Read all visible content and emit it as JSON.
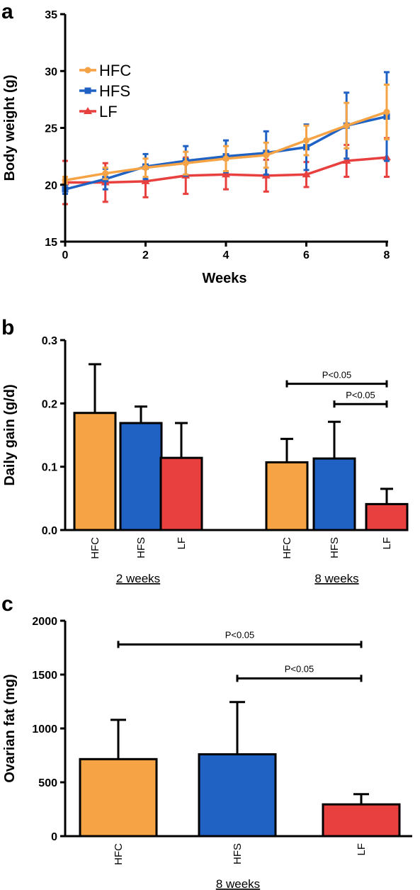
{
  "colors": {
    "HFC": "#F5A345",
    "HFS": "#1F62C4",
    "LF": "#E8403E",
    "axis": "#000000"
  },
  "chart_data": [
    {
      "panel": "a",
      "type": "line",
      "xlabel": "Weeks",
      "ylabel": "Body weight (g)",
      "xlim": [
        0,
        8
      ],
      "ylim": [
        15,
        35
      ],
      "xticks": [
        "0",
        "2",
        "4",
        "6",
        "8"
      ],
      "yticks": [
        "15",
        "20",
        "25",
        "30",
        "35"
      ],
      "grid": false,
      "legend_position": "top-left",
      "x": [
        0,
        1,
        2,
        3,
        4,
        5,
        6,
        7,
        8
      ],
      "series": [
        {
          "name": "HFC",
          "marker": "circle",
          "values": [
            20.4,
            21.0,
            21.5,
            21.9,
            22.3,
            22.6,
            23.9,
            25.2,
            26.4
          ],
          "errors": [
            0.3,
            0.5,
            0.8,
            1.0,
            1.1,
            1.1,
            1.3,
            2.0,
            2.4
          ]
        },
        {
          "name": "HFS",
          "marker": "square",
          "values": [
            19.6,
            20.5,
            21.6,
            22.1,
            22.5,
            22.8,
            23.3,
            25.2,
            26.0
          ],
          "errors": [
            0.4,
            0.9,
            1.1,
            1.3,
            1.4,
            1.9,
            2.0,
            2.9,
            3.9
          ]
        },
        {
          "name": "LF",
          "marker": "triangle",
          "values": [
            20.2,
            20.2,
            20.3,
            20.8,
            20.9,
            20.8,
            20.9,
            22.1,
            22.4
          ],
          "errors": [
            1.9,
            1.7,
            1.4,
            1.6,
            1.3,
            1.4,
            1.1,
            1.4,
            1.7
          ]
        }
      ]
    },
    {
      "panel": "b",
      "type": "bar",
      "ylabel": "Daily gain (g/d)",
      "ylim": [
        0.0,
        0.3
      ],
      "yticks": [
        "0.0",
        "0.1",
        "0.2",
        "0.3"
      ],
      "groups": [
        {
          "label": "2 weeks",
          "bars": [
            {
              "category": "HFC",
              "value": 0.185,
              "error": 0.077
            },
            {
              "category": "HFS",
              "value": 0.169,
              "error": 0.026
            },
            {
              "category": "LF",
              "value": 0.114,
              "error": 0.055
            }
          ]
        },
        {
          "label": "8 weeks",
          "bars": [
            {
              "category": "HFC",
              "value": 0.107,
              "error": 0.037
            },
            {
              "category": "HFS",
              "value": 0.113,
              "error": 0.058
            },
            {
              "category": "LF",
              "value": 0.041,
              "error": 0.024
            }
          ]
        }
      ],
      "annotations": [
        {
          "text": "P<0.05",
          "group": 1,
          "from": 0,
          "to": 2,
          "level": 0.231
        },
        {
          "text": "P<0.05",
          "group": 1,
          "from": 1,
          "to": 2,
          "level": 0.199
        }
      ]
    },
    {
      "panel": "c",
      "type": "bar",
      "ylabel": "Ovarian fat (mg)",
      "ylim": [
        0,
        2000
      ],
      "yticks": [
        "0",
        "500",
        "1000",
        "1500",
        "2000"
      ],
      "group_label": "8 weeks",
      "bars": [
        {
          "category": "HFC",
          "value": 715,
          "error": 365
        },
        {
          "category": "HFS",
          "value": 760,
          "error": 485
        },
        {
          "category": "LF",
          "value": 295,
          "error": 95
        }
      ],
      "annotations": [
        {
          "text": "P<0.05",
          "from": 0,
          "to": 2,
          "level": 1780
        },
        {
          "text": "P<0.05",
          "from": 1,
          "to": 2,
          "level": 1465
        }
      ]
    }
  ]
}
